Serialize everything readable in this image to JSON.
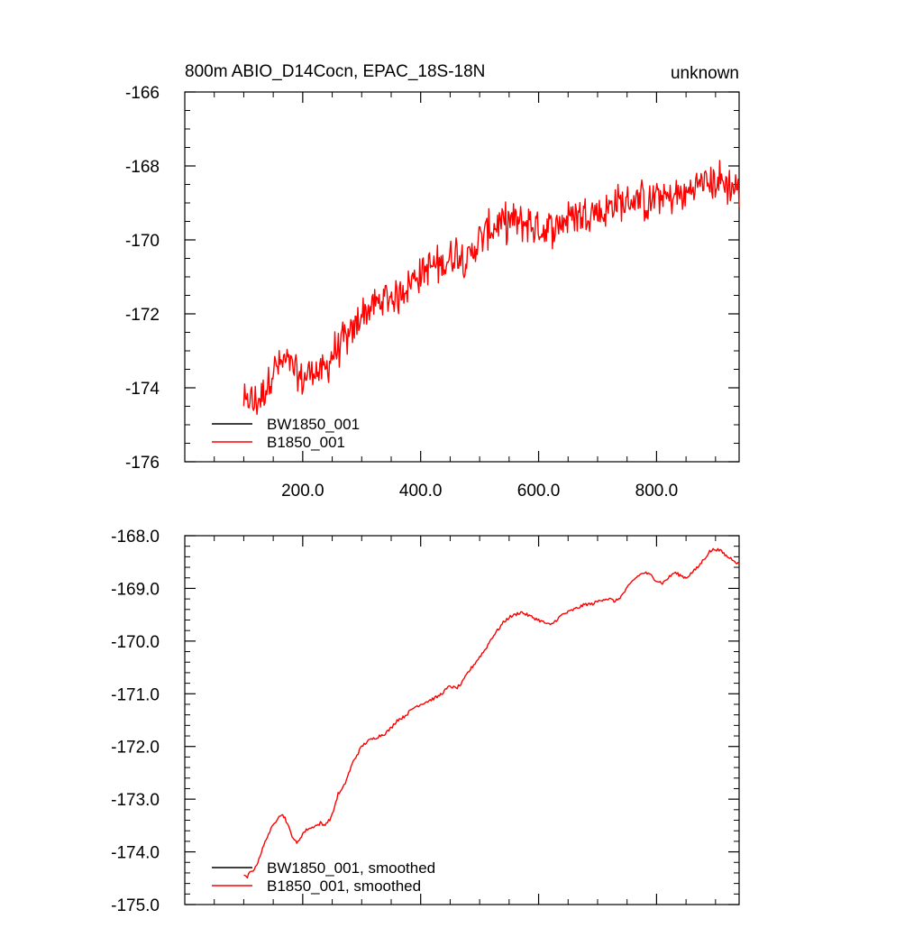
{
  "chart_data": [
    {
      "type": "line",
      "title": "800m ABIO_D14Cocn, EPAC_18S-18N",
      "right_title": "unknown",
      "xlim": [
        0,
        940
      ],
      "ylim": [
        -176,
        -166
      ],
      "xticks": [
        200.0,
        400.0,
        600.0,
        800.0
      ],
      "xtick_labels": [
        "200.0",
        "400.0",
        "600.0",
        "800.0"
      ],
      "yticks": [
        -176,
        -174,
        -172,
        -170,
        -168,
        -166
      ],
      "ytick_labels": [
        "-176",
        "-174",
        "-172",
        "-170",
        "-168",
        "-166"
      ],
      "grid": false,
      "legend_position": "bottom-left",
      "series": [
        {
          "name": "BW1850_001",
          "color": "#000000",
          "x": [],
          "y": []
        },
        {
          "name": "B1850_001",
          "color": "#ff0000",
          "x": [
            100,
            105,
            110,
            115,
            120,
            130,
            140,
            150,
            160,
            170,
            180,
            190,
            200,
            210,
            220,
            230,
            240,
            250,
            260,
            270,
            280,
            290,
            300,
            310,
            320,
            330,
            340,
            350,
            360,
            370,
            380,
            390,
            400,
            410,
            420,
            430,
            440,
            450,
            460,
            470,
            480,
            490,
            500,
            510,
            520,
            530,
            540,
            550,
            560,
            570,
            580,
            590,
            600,
            610,
            620,
            630,
            640,
            650,
            660,
            670,
            680,
            690,
            700,
            710,
            720,
            730,
            740,
            750,
            760,
            770,
            780,
            790,
            800,
            810,
            820,
            830,
            840,
            850,
            860,
            870,
            880,
            890,
            900,
            910,
            920,
            930,
            940
          ],
          "y": [
            -174.3,
            -174.6,
            -174.1,
            -174.5,
            -174.4,
            -174.2,
            -173.9,
            -173.5,
            -173.4,
            -173.3,
            -173.4,
            -173.7,
            -173.8,
            -173.6,
            -173.5,
            -173.6,
            -173.5,
            -173.1,
            -172.9,
            -172.7,
            -172.7,
            -172.3,
            -172.0,
            -171.9,
            -171.8,
            -171.7,
            -171.6,
            -171.5,
            -171.6,
            -171.3,
            -171.2,
            -171.0,
            -170.9,
            -170.8,
            -170.7,
            -170.7,
            -170.6,
            -170.5,
            -170.3,
            -170.4,
            -170.6,
            -170.2,
            -170.0,
            -169.8,
            -169.7,
            -169.6,
            -169.6,
            -169.5,
            -169.5,
            -169.6,
            -169.5,
            -169.6,
            -169.7,
            -169.7,
            -169.7,
            -169.6,
            -169.5,
            -169.4,
            -169.3,
            -169.3,
            -169.3,
            -169.2,
            -169.2,
            -169.3,
            -169.1,
            -169.0,
            -169.0,
            -169.0,
            -168.9,
            -168.9,
            -169.0,
            -169.0,
            -168.8,
            -168.8,
            -168.9,
            -168.8,
            -168.8,
            -168.8,
            -168.6,
            -168.5,
            -168.4,
            -168.5,
            -168.4,
            -168.4,
            -168.5,
            -168.6,
            -168.6
          ],
          "noise": 0.45
        }
      ]
    },
    {
      "type": "line",
      "title": "",
      "xlim": [
        0,
        940
      ],
      "ylim": [
        -175.0,
        -168.0
      ],
      "xticks": [
        200,
        400,
        600,
        800
      ],
      "xtick_labels": [],
      "yticks": [
        -175.0,
        -174.0,
        -173.0,
        -172.0,
        -171.0,
        -170.0,
        -169.0,
        -168.0
      ],
      "ytick_labels": [
        "-175.0",
        "-174.0",
        "-173.0",
        "-172.0",
        "-171.0",
        "-170.0",
        "-169.0",
        "-168.0"
      ],
      "grid": false,
      "legend_position": "bottom-left",
      "series": [
        {
          "name": "BW1850_001, smoothed",
          "color": "#000000",
          "x": [],
          "y": []
        },
        {
          "name": "B1850_001, smoothed",
          "color": "#ff0000",
          "x": [
            100,
            105,
            110,
            115,
            120,
            125,
            130,
            135,
            140,
            145,
            150,
            155,
            160,
            165,
            170,
            175,
            180,
            185,
            190,
            195,
            200,
            205,
            210,
            215,
            220,
            225,
            230,
            235,
            240,
            245,
            250,
            255,
            260,
            265,
            270,
            275,
            280,
            285,
            290,
            295,
            300,
            310,
            320,
            330,
            340,
            350,
            360,
            370,
            380,
            390,
            400,
            410,
            420,
            430,
            440,
            450,
            460,
            470,
            480,
            490,
            500,
            510,
            520,
            530,
            540,
            550,
            560,
            570,
            580,
            590,
            600,
            610,
            620,
            630,
            640,
            650,
            660,
            670,
            680,
            690,
            700,
            710,
            720,
            730,
            740,
            750,
            760,
            770,
            780,
            790,
            800,
            810,
            820,
            830,
            840,
            850,
            860,
            870,
            880,
            890,
            900,
            910,
            920,
            930,
            940
          ],
          "y": [
            -174.45,
            -174.5,
            -174.4,
            -174.35,
            -174.3,
            -174.15,
            -174.0,
            -173.85,
            -173.7,
            -173.6,
            -173.5,
            -173.4,
            -173.3,
            -173.3,
            -173.35,
            -173.5,
            -173.65,
            -173.75,
            -173.85,
            -173.75,
            -173.65,
            -173.6,
            -173.55,
            -173.55,
            -173.5,
            -173.5,
            -173.45,
            -173.5,
            -173.45,
            -173.4,
            -173.3,
            -173.1,
            -172.9,
            -172.85,
            -172.75,
            -172.6,
            -172.45,
            -172.3,
            -172.2,
            -172.1,
            -172.0,
            -171.9,
            -171.85,
            -171.8,
            -171.75,
            -171.65,
            -171.5,
            -171.45,
            -171.35,
            -171.25,
            -171.2,
            -171.15,
            -171.1,
            -171.05,
            -170.95,
            -170.85,
            -170.9,
            -170.8,
            -170.6,
            -170.45,
            -170.3,
            -170.15,
            -169.95,
            -169.8,
            -169.65,
            -169.55,
            -169.5,
            -169.45,
            -169.5,
            -169.55,
            -169.6,
            -169.65,
            -169.7,
            -169.6,
            -169.5,
            -169.45,
            -169.4,
            -169.35,
            -169.3,
            -169.3,
            -169.25,
            -169.2,
            -169.2,
            -169.25,
            -169.15,
            -169.0,
            -168.85,
            -168.75,
            -168.7,
            -168.75,
            -168.85,
            -168.9,
            -168.8,
            -168.7,
            -168.75,
            -168.8,
            -168.7,
            -168.6,
            -168.45,
            -168.3,
            -168.25,
            -168.3,
            -168.4,
            -168.45,
            -168.55
          ]
        }
      ]
    }
  ]
}
